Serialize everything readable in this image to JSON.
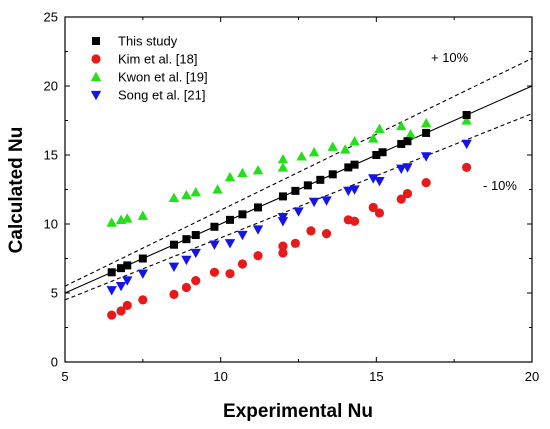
{
  "chart_data": {
    "type": "scatter",
    "xlabel": "Experimental Nu",
    "ylabel": "Calculated Nu",
    "xlim": [
      5,
      20
    ],
    "ylim": [
      0,
      25
    ],
    "xticks": [
      5,
      10,
      15,
      20
    ],
    "yticks": [
      0,
      5,
      10,
      15,
      20,
      25
    ],
    "grid": false,
    "legend_position": "top-left",
    "annotations": [
      "+ 10%",
      "- 10%"
    ],
    "series": [
      {
        "name": "This study",
        "marker": "square",
        "color": "#000000",
        "points": [
          [
            6.5,
            6.5
          ],
          [
            6.8,
            6.8
          ],
          [
            7.0,
            7.0
          ],
          [
            7.5,
            7.5
          ],
          [
            8.5,
            8.5
          ],
          [
            8.9,
            8.9
          ],
          [
            9.2,
            9.2
          ],
          [
            9.8,
            9.8
          ],
          [
            10.3,
            10.3
          ],
          [
            10.7,
            10.7
          ],
          [
            11.2,
            11.2
          ],
          [
            12.0,
            12.0
          ],
          [
            12.4,
            12.4
          ],
          [
            12.8,
            12.8
          ],
          [
            13.2,
            13.2
          ],
          [
            13.6,
            13.6
          ],
          [
            14.1,
            14.1
          ],
          [
            14.3,
            14.3
          ],
          [
            15.0,
            15.0
          ],
          [
            15.2,
            15.2
          ],
          [
            15.8,
            15.8
          ],
          [
            16.0,
            16.0
          ],
          [
            16.6,
            16.6
          ],
          [
            17.9,
            17.9
          ]
        ]
      },
      {
        "name": "Kim et al. [18]",
        "marker": "circle",
        "color": "#e8191b",
        "points": [
          [
            6.5,
            3.4
          ],
          [
            6.8,
            3.7
          ],
          [
            7.0,
            4.1
          ],
          [
            7.5,
            4.5
          ],
          [
            8.5,
            4.9
          ],
          [
            8.9,
            5.4
          ],
          [
            9.2,
            5.9
          ],
          [
            9.8,
            6.5
          ],
          [
            10.3,
            6.4
          ],
          [
            10.7,
            7.1
          ],
          [
            11.2,
            7.7
          ],
          [
            12.0,
            7.9
          ],
          [
            12.0,
            8.4
          ],
          [
            12.4,
            8.6
          ],
          [
            12.9,
            9.5
          ],
          [
            13.4,
            9.3
          ],
          [
            14.1,
            10.3
          ],
          [
            14.3,
            10.2
          ],
          [
            14.9,
            11.2
          ],
          [
            15.1,
            10.8
          ],
          [
            15.8,
            11.8
          ],
          [
            16.0,
            12.2
          ],
          [
            16.6,
            13.0
          ],
          [
            17.9,
            14.1
          ]
        ]
      },
      {
        "name": "Kwon et al. [19]",
        "marker": "triangle-up",
        "color": "#22e01a",
        "points": [
          [
            6.5,
            10.1
          ],
          [
            6.8,
            10.3
          ],
          [
            7.0,
            10.4
          ],
          [
            7.5,
            10.6
          ],
          [
            8.5,
            11.9
          ],
          [
            8.9,
            12.1
          ],
          [
            9.2,
            12.3
          ],
          [
            9.9,
            12.5
          ],
          [
            10.3,
            13.4
          ],
          [
            10.7,
            13.7
          ],
          [
            11.2,
            13.9
          ],
          [
            12.0,
            14.7
          ],
          [
            12.0,
            14.1
          ],
          [
            12.6,
            14.9
          ],
          [
            13.0,
            15.2
          ],
          [
            13.6,
            15.6
          ],
          [
            14.0,
            15.4
          ],
          [
            14.3,
            16.0
          ],
          [
            14.9,
            16.2
          ],
          [
            15.1,
            16.9
          ],
          [
            15.8,
            17.1
          ],
          [
            16.1,
            16.5
          ],
          [
            16.6,
            17.3
          ],
          [
            17.9,
            17.5
          ]
        ]
      },
      {
        "name": "Song et al. [21]",
        "marker": "triangle-down",
        "color": "#1414e8",
        "points": [
          [
            6.5,
            5.2
          ],
          [
            6.8,
            5.5
          ],
          [
            7.0,
            5.9
          ],
          [
            7.5,
            6.4
          ],
          [
            8.5,
            6.9
          ],
          [
            8.9,
            7.4
          ],
          [
            9.2,
            7.9
          ],
          [
            9.8,
            8.5
          ],
          [
            10.3,
            8.6
          ],
          [
            10.7,
            9.2
          ],
          [
            11.2,
            9.6
          ],
          [
            12.0,
            10.2
          ],
          [
            12.0,
            10.5
          ],
          [
            12.5,
            10.9
          ],
          [
            13.0,
            11.6
          ],
          [
            13.4,
            11.7
          ],
          [
            14.1,
            12.4
          ],
          [
            14.3,
            12.5
          ],
          [
            14.9,
            13.3
          ],
          [
            15.1,
            13.1
          ],
          [
            15.8,
            14.0
          ],
          [
            16.0,
            14.1
          ],
          [
            16.6,
            14.9
          ],
          [
            17.9,
            15.8
          ]
        ]
      }
    ],
    "reference_lines": [
      {
        "label": "y = x",
        "style": "solid",
        "slope": 1.0
      },
      {
        "label": "+ 10%",
        "style": "dashed",
        "slope": 1.1
      },
      {
        "label": "- 10%",
        "style": "dashed",
        "slope": 0.9
      }
    ]
  }
}
